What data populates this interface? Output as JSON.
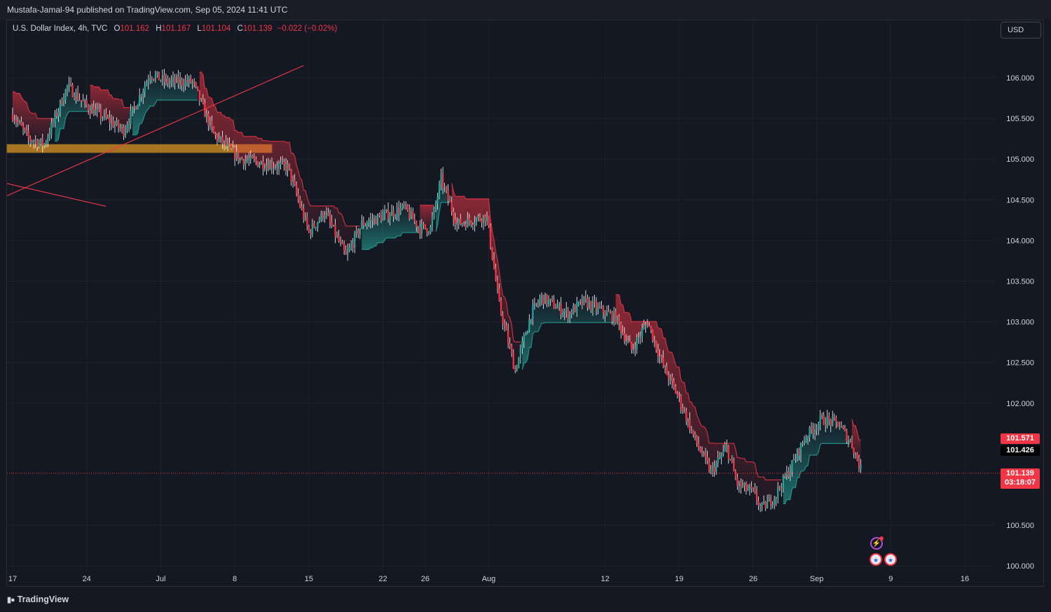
{
  "publisher_line": "Mustafa-Jamal-94 published on TradingView.com, Sep 05, 2024 11:41 UTC",
  "legend": {
    "symbol": "U.S. Dollar Index, 4h, TVC",
    "o_label": "O",
    "o_value": "101.162",
    "h_label": "H",
    "h_value": "101.167",
    "l_label": "L",
    "l_value": "101.104",
    "c_label": "C",
    "c_value": "101.139",
    "change": "−0.022 (−0.02%)"
  },
  "currency_button": "USD",
  "price_tags": {
    "upper": "101.571",
    "lower": "101.426",
    "last_price": "101.139",
    "countdown": "03:18:07"
  },
  "footer_brand": "TradingView",
  "icons": {
    "logo": "tradingview-logo-icon",
    "bolt": "lightning-event-icon",
    "flag": "us-flag-event-icon"
  },
  "colors": {
    "up": "#26a69a",
    "down": "#f23645",
    "wick": "#ffffff",
    "zone": "#f5a623",
    "background": "#141823",
    "grid": "#1e222d"
  },
  "chart_data": {
    "type": "candlestick",
    "title": "U.S. Dollar Index, 4h, TVC",
    "ylim": [
      99.85,
      106.45
    ],
    "y_ticks": [
      "106.000",
      "105.500",
      "105.000",
      "104.500",
      "104.000",
      "103.500",
      "103.000",
      "102.500",
      "102.000",
      "100.500",
      "100.000"
    ],
    "x_ticks": [
      "17",
      "24",
      "Jul",
      "8",
      "15",
      "22",
      "26",
      "Aug",
      "12",
      "19",
      "26",
      "Sep",
      "9",
      "16"
    ],
    "x_tick_days": [
      0,
      7,
      14,
      21,
      28,
      35,
      39,
      45,
      56,
      63,
      70,
      76,
      83,
      90
    ],
    "last_day": 80.3,
    "path_days": [
      0,
      1.5,
      3,
      5.2,
      7,
      10.5,
      13,
      14.5,
      17,
      19,
      21.5,
      23.5,
      26,
      28,
      29.5,
      31.5,
      33,
      35,
      37,
      38.5,
      39.5,
      40.5,
      42,
      44.8,
      46,
      47.5,
      49,
      50,
      52.5,
      54,
      55.5,
      57,
      58.5,
      60,
      61.5,
      63,
      64.5,
      66,
      67.5,
      68.5,
      70,
      70.8,
      72,
      73.5,
      75,
      76.5,
      78,
      79.3,
      80.3
    ],
    "path_closes": [
      105.55,
      105.25,
      105.18,
      105.9,
      105.65,
      105.35,
      106.05,
      105.95,
      105.95,
      105.3,
      105.0,
      104.95,
      104.9,
      104.1,
      104.35,
      103.8,
      104.2,
      104.3,
      104.4,
      104.15,
      104.15,
      104.75,
      104.2,
      104.3,
      103.2,
      102.4,
      103.1,
      103.3,
      103.1,
      103.25,
      103.15,
      103.05,
      102.65,
      103.0,
      102.45,
      102.05,
      101.55,
      101.15,
      101.45,
      101.0,
      100.9,
      100.7,
      100.85,
      101.2,
      101.6,
      101.8,
      101.75,
      101.5,
      101.139
    ],
    "key_levels": [
      {
        "name": "upper",
        "value": 101.571,
        "color": "#f23645"
      },
      {
        "name": "lower",
        "value": 101.426,
        "color": "#000000"
      },
      {
        "name": "last",
        "value": 101.139,
        "color": "#f23645"
      }
    ],
    "zone": {
      "day_start": 0,
      "day_end": 24.5,
      "low": 105.08,
      "high": 105.18
    },
    "trendlines": [
      {
        "day1": 0,
        "p1": 104.55,
        "day2": 27.5,
        "p2": 106.15
      },
      {
        "day1": 0,
        "p1": 104.7,
        "day2": 8.8,
        "p2": 104.42
      }
    ]
  }
}
